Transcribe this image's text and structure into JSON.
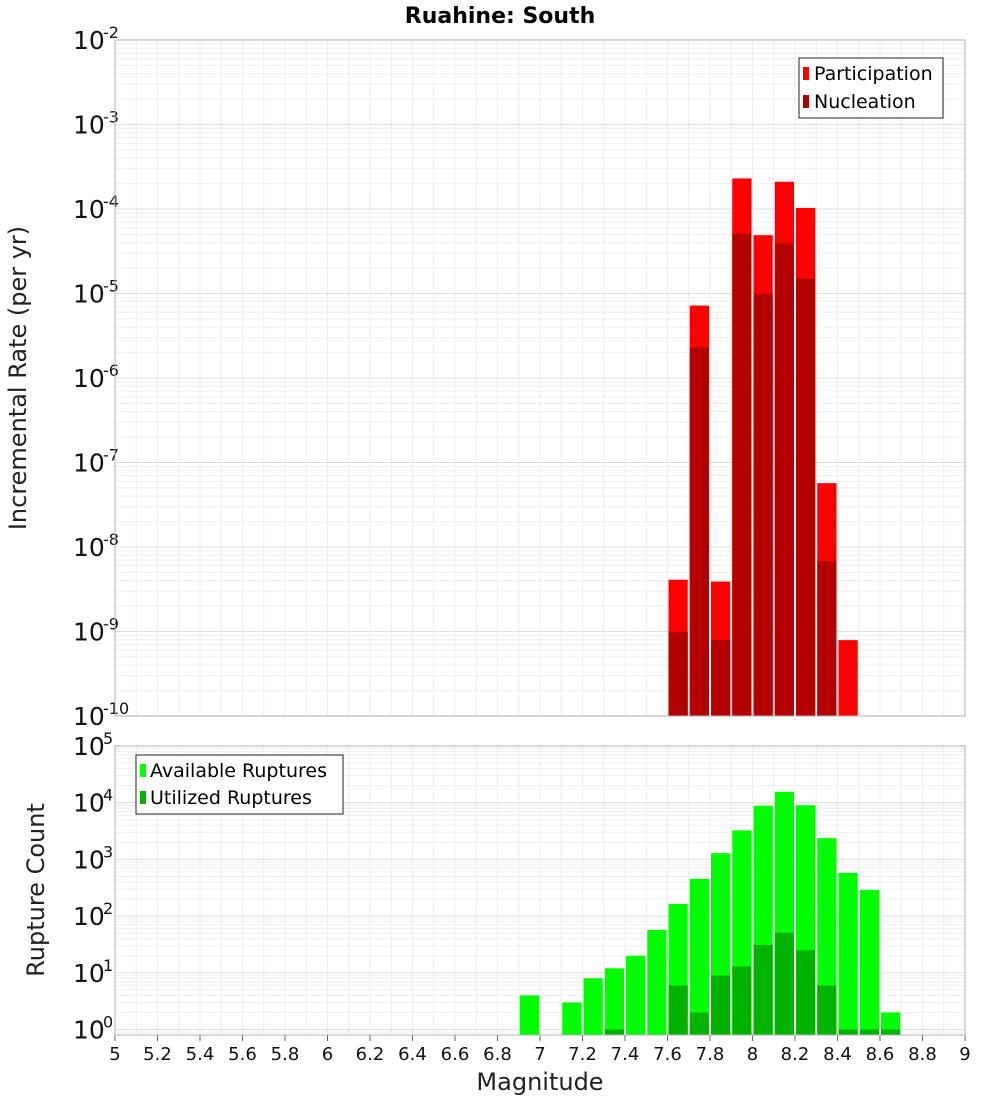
{
  "chart_data": [
    {
      "type": "bar",
      "title": "Ruahine: South",
      "xlabel": "",
      "ylabel": "Incremental Rate (per yr)",
      "xlim": [
        5,
        9
      ],
      "ylim": [
        1e-10,
        0.01
      ],
      "yscale": "log",
      "grid": true,
      "legend_position": "top-right",
      "bar_width": 0.1,
      "colors": {
        "Participation": "#ff0000",
        "Nucleation": "#b30000"
      },
      "series": [
        {
          "name": "Participation",
          "x": [
            7.65,
            7.75,
            7.85,
            7.95,
            8.05,
            8.15,
            8.25,
            8.35,
            8.45
          ],
          "values": [
            4.1e-09,
            7.2e-06,
            3.9e-09,
            0.00023,
            4.9e-05,
            0.00021,
            0.000103,
            5.7e-08,
            7.9e-10
          ]
        },
        {
          "name": "Nucleation",
          "x": [
            7.65,
            7.75,
            7.85,
            7.95,
            8.05,
            8.15,
            8.25,
            8.35
          ],
          "values": [
            9.8e-10,
            2.3e-06,
            7.9e-10,
            5.1e-05,
            9.9e-06,
            3.9e-05,
            1.5e-05,
            6.8e-09
          ]
        }
      ]
    },
    {
      "type": "bar",
      "title": "",
      "xlabel": "Magnitude",
      "ylabel": "Rupture Count",
      "xlim": [
        5,
        9
      ],
      "ylim": [
        0.8,
        100000.0
      ],
      "yscale": "log",
      "grid": true,
      "legend_position": "top-left",
      "bar_width": 0.1,
      "colors": {
        "Available Ruptures": "#00ff00",
        "Utilized Ruptures": "#00b300"
      },
      "series": [
        {
          "name": "Available Ruptures",
          "x": [
            6.95,
            7.15,
            7.25,
            7.35,
            7.45,
            7.55,
            7.65,
            7.75,
            7.85,
            7.95,
            8.05,
            8.15,
            8.25,
            8.35,
            8.45,
            8.55,
            8.65
          ],
          "values": [
            4,
            3,
            8,
            12,
            20,
            57,
            164,
            453,
            1290,
            3260,
            8830,
            15600,
            9000,
            2370,
            580,
            290,
            2
          ]
        },
        {
          "name": "Utilized Ruptures",
          "x": [
            7.35,
            7.65,
            7.75,
            7.85,
            7.95,
            8.05,
            8.15,
            8.25,
            8.35,
            8.45,
            8.55,
            8.65
          ],
          "values": [
            1,
            6,
            2,
            9,
            13,
            31,
            51,
            25,
            6,
            1,
            1,
            1
          ]
        }
      ],
      "x_ticks": [
        5,
        5.2,
        5.4,
        5.6,
        5.8,
        6,
        6.2,
        6.4,
        6.6,
        6.8,
        7,
        7.2,
        7.4,
        7.6,
        7.8,
        8,
        8.2,
        8.4,
        8.6,
        8.8,
        9
      ]
    }
  ]
}
